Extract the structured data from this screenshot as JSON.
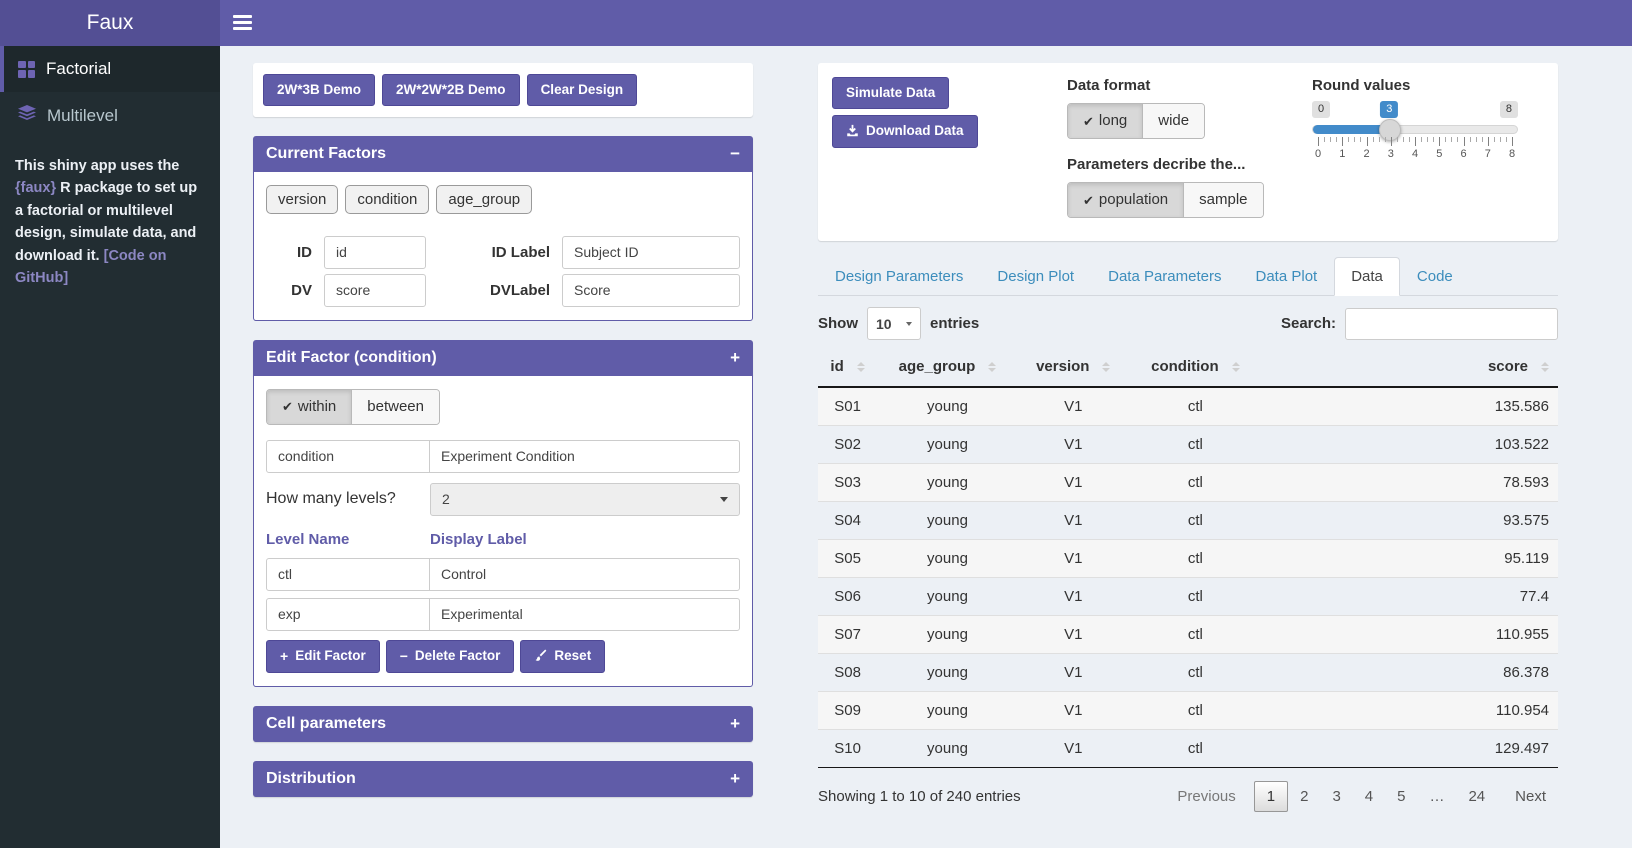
{
  "app": {
    "title": "Faux"
  },
  "sidebar": {
    "items": [
      {
        "label": "Factorial",
        "active": true
      },
      {
        "label": "Multilevel",
        "active": false
      }
    ],
    "about": {
      "text_1": "This shiny app uses the ",
      "link_faux": "{faux}",
      "text_2": " R package to set up a factorial or multilevel design, simulate data, and download it. ",
      "link_github": "[Code on GitHub]"
    }
  },
  "toolbar": {
    "demo1": "2W*3B Demo",
    "demo2": "2W*2W*2B Demo",
    "clear": "Clear Design"
  },
  "current_factors": {
    "title": "Current Factors",
    "tags": [
      "version",
      "condition",
      "age_group"
    ],
    "id_label": "ID",
    "id_value": "id",
    "id_display_label": "ID Label",
    "id_display_value": "Subject ID",
    "dv_label": "DV",
    "dv_value": "score",
    "dv_display_label": "DVLabel",
    "dv_display_value": "Score"
  },
  "edit_factor": {
    "title": "Edit Factor (condition)",
    "option_within": "within",
    "option_between": "between",
    "selected_type": "within",
    "name_value": "condition",
    "display_value": "Experiment Condition",
    "levels_question": "How many levels?",
    "levels_value": "2",
    "level_name_header": "Level Name",
    "display_label_header": "Display Label",
    "levels": [
      {
        "name": "ctl",
        "label": "Control"
      },
      {
        "name": "exp",
        "label": "Experimental"
      }
    ],
    "edit_btn": "Edit Factor",
    "delete_btn": "Delete Factor",
    "reset_btn": "Reset"
  },
  "panels": {
    "cell": "Cell parameters",
    "distribution": "Distribution"
  },
  "simulate": {
    "simulate_btn": "Simulate Data",
    "download_btn": "Download Data",
    "data_format_label": "Data format",
    "format_long": "long",
    "format_wide": "wide",
    "format_selected": "long",
    "parameters_label": "Parameters decribe the...",
    "param_population": "population",
    "param_sample": "sample",
    "param_selected": "population",
    "round_label": "Round values",
    "round_min": "0",
    "round_value": "3",
    "round_max": "8",
    "round_ticks": [
      "0",
      "1",
      "2",
      "3",
      "4",
      "5",
      "6",
      "7",
      "8"
    ]
  },
  "tabs": [
    {
      "label": "Design Parameters",
      "active": false
    },
    {
      "label": "Design Plot",
      "active": false
    },
    {
      "label": "Data Parameters",
      "active": false
    },
    {
      "label": "Data Plot",
      "active": false
    },
    {
      "label": "Data",
      "active": true
    },
    {
      "label": "Code",
      "active": false
    }
  ],
  "datatable": {
    "show_label": "Show",
    "page_size": "10",
    "entries_label": "entries",
    "search_label": "Search:",
    "search_value": "",
    "columns": [
      "id",
      "age_group",
      "version",
      "condition",
      "score"
    ],
    "rows": [
      [
        "S01",
        "young",
        "V1",
        "ctl",
        "135.586"
      ],
      [
        "S02",
        "young",
        "V1",
        "ctl",
        "103.522"
      ],
      [
        "S03",
        "young",
        "V1",
        "ctl",
        "78.593"
      ],
      [
        "S04",
        "young",
        "V1",
        "ctl",
        "93.575"
      ],
      [
        "S05",
        "young",
        "V1",
        "ctl",
        "95.119"
      ],
      [
        "S06",
        "young",
        "V1",
        "ctl",
        "77.4"
      ],
      [
        "S07",
        "young",
        "V1",
        "ctl",
        "110.955"
      ],
      [
        "S08",
        "young",
        "V1",
        "ctl",
        "86.378"
      ],
      [
        "S09",
        "young",
        "V1",
        "ctl",
        "110.954"
      ],
      [
        "S10",
        "young",
        "V1",
        "ctl",
        "129.497"
      ]
    ],
    "info": "Showing 1 to 10 of 240 entries",
    "pagination": {
      "previous": "Previous",
      "pages": [
        "1",
        "2",
        "3",
        "4",
        "5",
        "…",
        "24"
      ],
      "current_page": "1",
      "next": "Next"
    }
  },
  "icons": {
    "check": "✔",
    "plus": "+",
    "minus": "−"
  },
  "colors": {
    "purple": "#605ca8",
    "purple_dark": "#534f94",
    "sidebar": "#222d32",
    "tab_blue": "#3c8dbc",
    "slider_blue": "#428bca",
    "page_bg": "#ecf0f5"
  }
}
